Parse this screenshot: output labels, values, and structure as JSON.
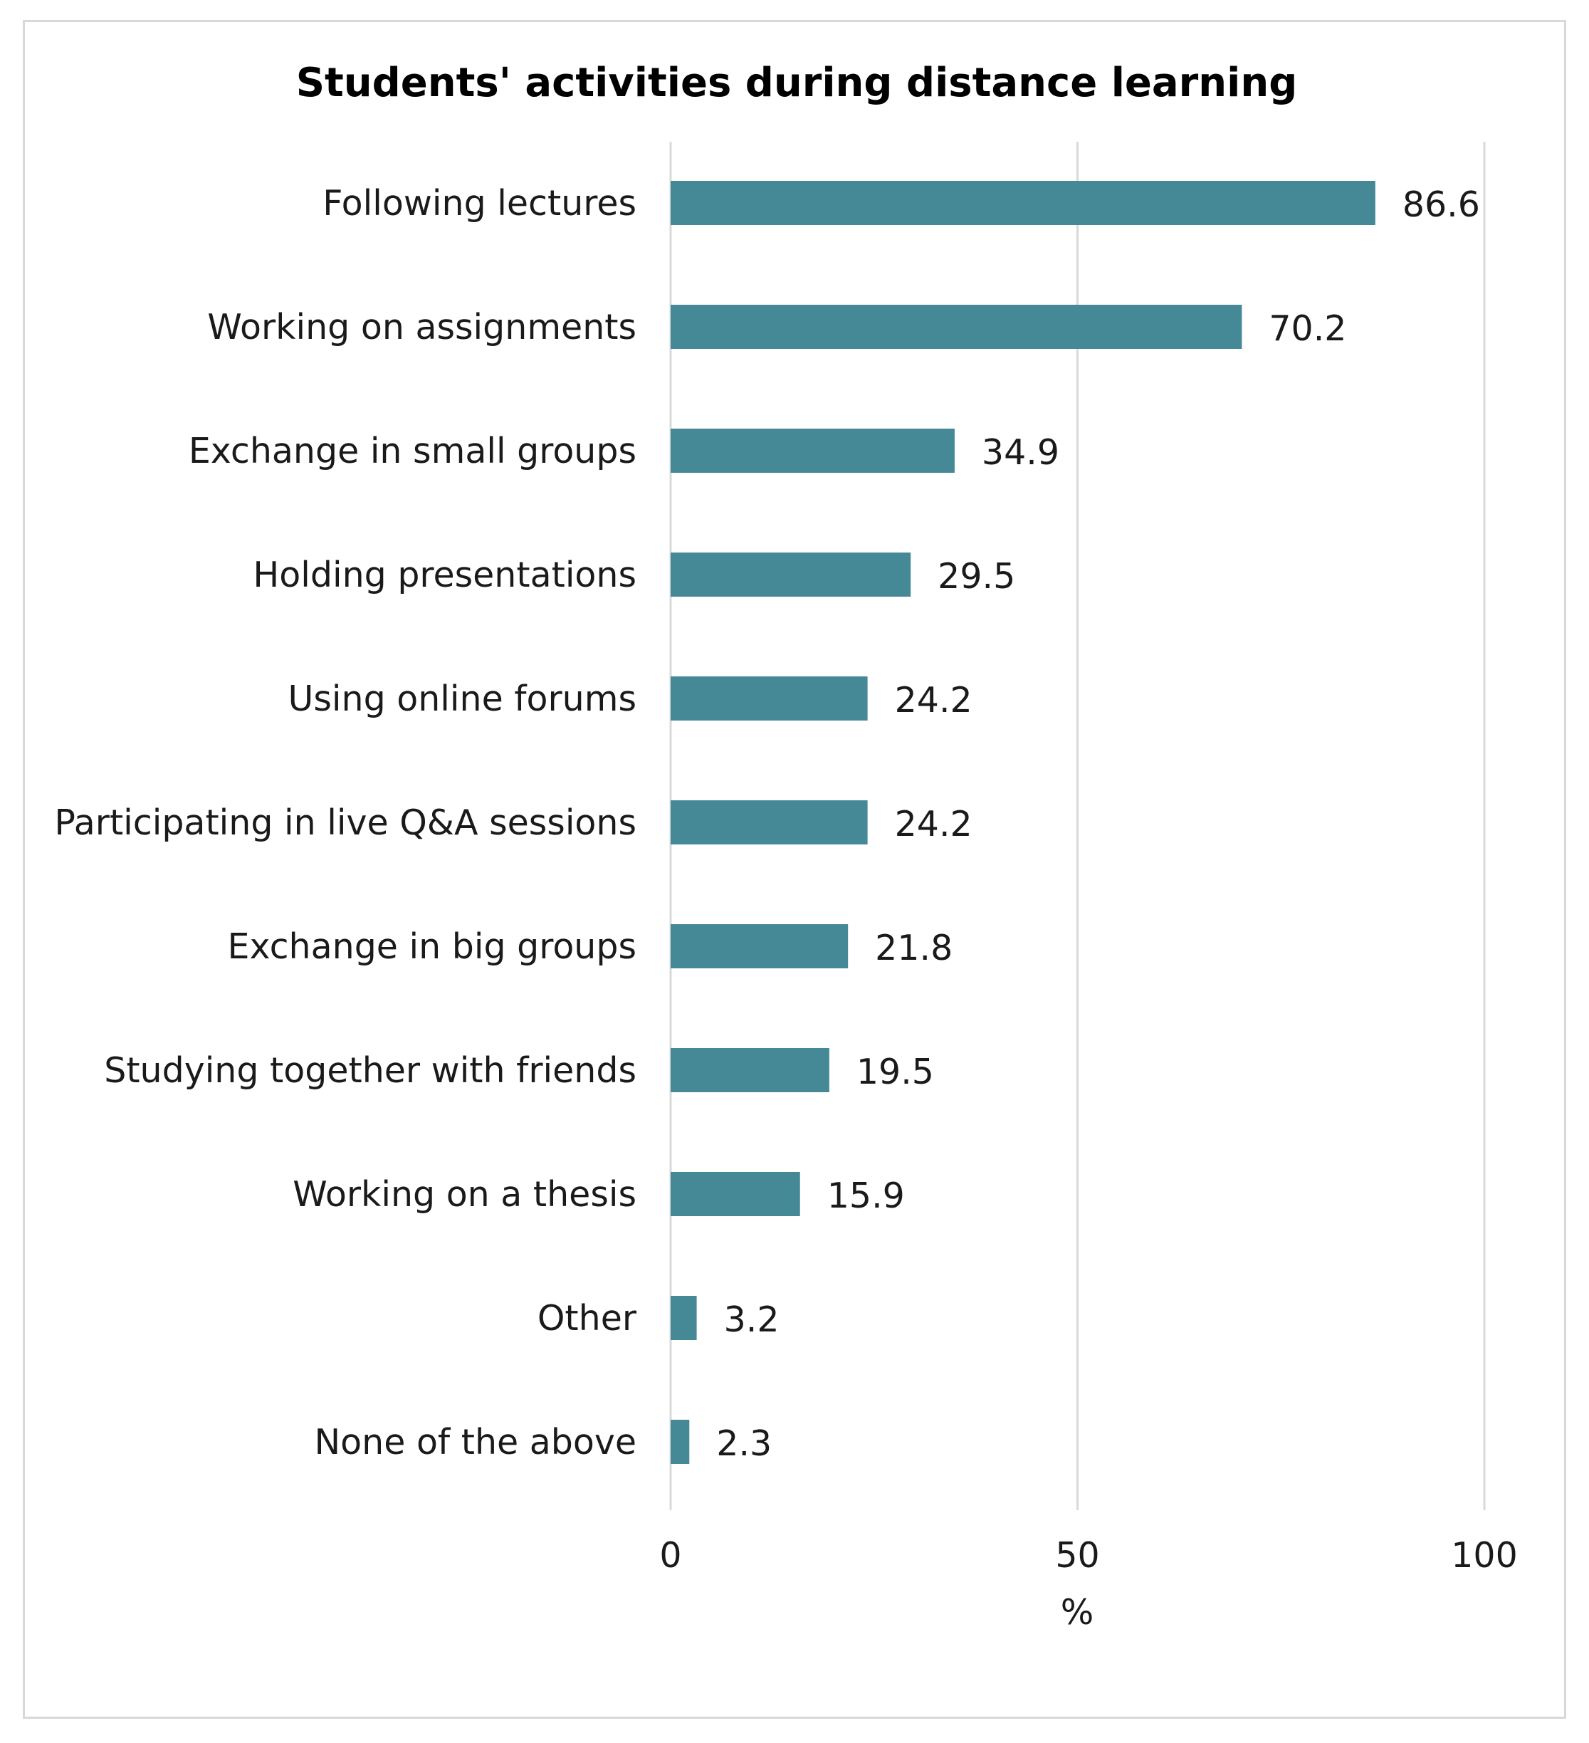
{
  "chart_data": {
    "type": "bar",
    "orientation": "horizontal",
    "title": "Students' activities during distance learning",
    "xlabel": "%",
    "ylabel": "",
    "xlim": [
      0,
      100
    ],
    "xticks": [
      "0",
      "50",
      "100"
    ],
    "grid": true,
    "bar_color": "#458896",
    "categories": [
      "Following lectures",
      "Working on assignments",
      "Exchange in small groups",
      "Holding presentations",
      "Using online forums",
      "Participating in live Q&A sessions",
      "Exchange in big groups",
      "Studying together with friends",
      "Working on a thesis",
      "Other",
      "None of the above"
    ],
    "values": [
      86.6,
      70.2,
      34.9,
      29.5,
      24.2,
      24.2,
      21.8,
      19.5,
      15.9,
      3.2,
      2.3
    ],
    "value_labels": [
      "86.6",
      "70.2",
      "34.9",
      "29.5",
      "24.2",
      "24.2",
      "21.8",
      "19.5",
      "15.9",
      "3.2",
      "2.3"
    ]
  }
}
